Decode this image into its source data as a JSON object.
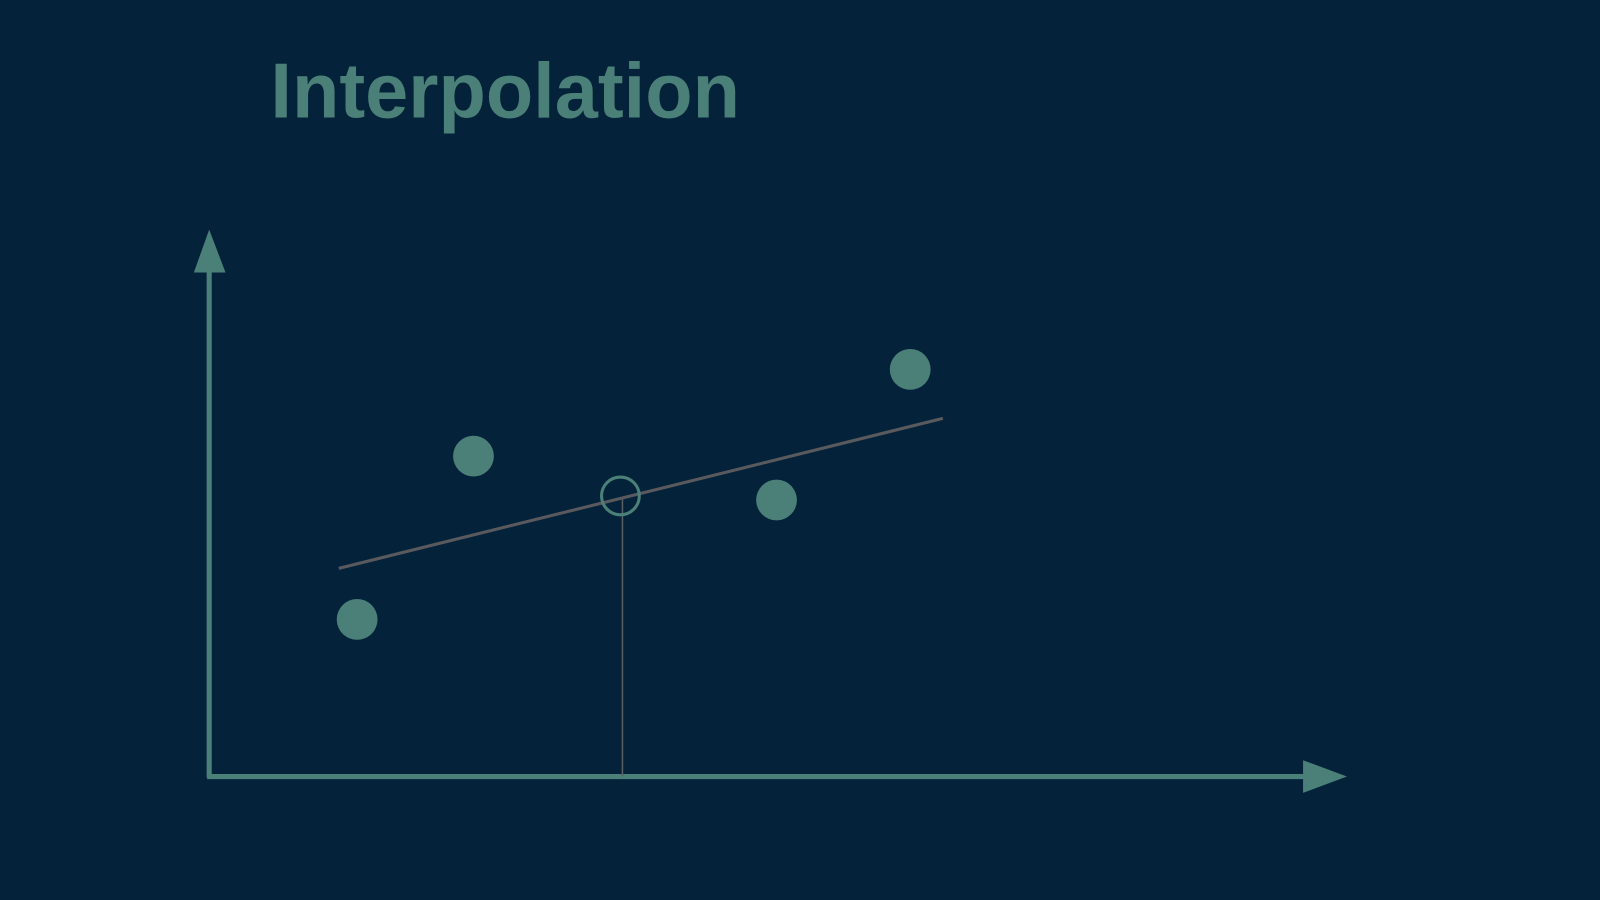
{
  "title": "Interpolation"
}
